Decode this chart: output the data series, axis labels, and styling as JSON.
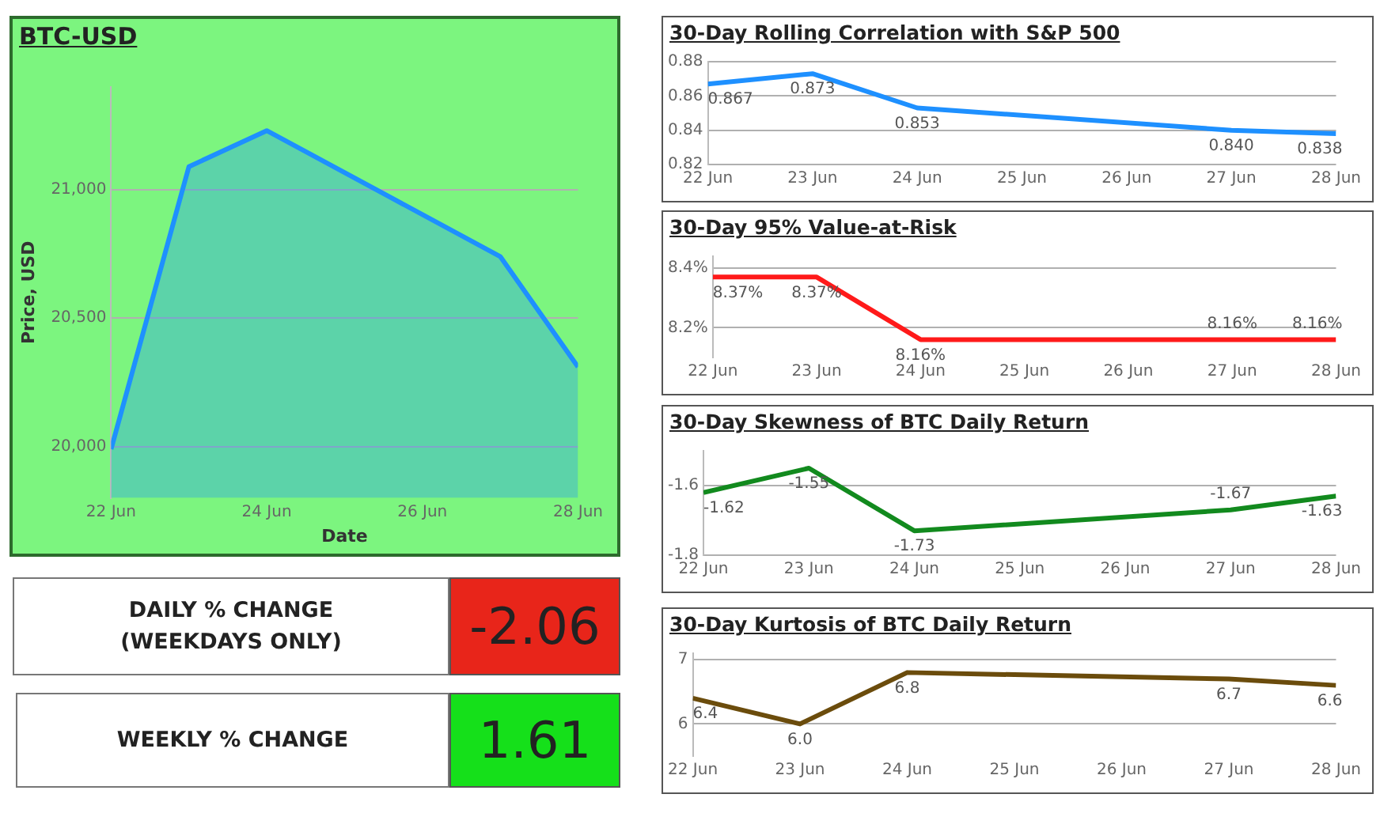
{
  "chart_data": [
    {
      "type": "area",
      "title": "BTC-USD",
      "xlabel": "Date",
      "ylabel": "Price, USD",
      "x": [
        "--06-22",
        "--06-23",
        "--06-24",
        "--06-27",
        "--06-28"
      ],
      "values": [
        19990,
        21090,
        21230,
        20740,
        20310
      ],
      "color": "#1e90ff",
      "xlim": [
        "--06-22",
        "--06-28"
      ],
      "xticks": [
        {
          "value": "--06-22",
          "label": "22 Jun"
        },
        {
          "value": "--06-24",
          "label": "24 Jun"
        },
        {
          "value": "--06-26",
          "label": "26 Jun"
        },
        {
          "value": "--06-28",
          "label": "28 Jun"
        }
      ],
      "ylim": [
        19800,
        21400
      ],
      "yticks": [
        {
          "value": 20000,
          "label": "20,000"
        },
        {
          "value": 20500,
          "label": "20,500"
        },
        {
          "value": 21000,
          "label": "21,000"
        }
      ],
      "grid": "y"
    },
    {
      "type": "line",
      "title": "30-Day Rolling Correlation with S&P 500",
      "x": [
        "--06-22",
        "--06-23",
        "--06-24",
        "--06-27",
        "--06-28"
      ],
      "values": [
        0.867,
        0.873,
        0.853,
        0.84,
        0.838
      ],
      "value_labels": [
        "0.867",
        "0.873",
        "0.853",
        "0.840",
        "0.838"
      ],
      "color": "#1e90ff",
      "xlim": [
        "--06-22",
        "--06-28"
      ],
      "xticks": [
        {
          "value": "--06-22",
          "label": "22 Jun"
        },
        {
          "value": "--06-23",
          "label": "23 Jun"
        },
        {
          "value": "--06-24",
          "label": "24 Jun"
        },
        {
          "value": "--06-25",
          "label": "25 Jun"
        },
        {
          "value": "--06-26",
          "label": "26 Jun"
        },
        {
          "value": "--06-27",
          "label": "27 Jun"
        },
        {
          "value": "--06-28",
          "label": "28 Jun"
        }
      ],
      "ylim": [
        0.82,
        0.88
      ],
      "yticks": [
        0.82,
        0.84,
        0.86,
        0.88
      ],
      "grid": "y"
    },
    {
      "type": "line",
      "title": "30-Day 95% Value-at-Risk",
      "x": [
        "--06-22",
        "--06-23",
        "--06-24",
        "--06-27",
        "--06-28"
      ],
      "values": [
        8.37,
        8.37,
        8.16,
        8.16,
        8.16
      ],
      "value_labels": [
        "8.37%",
        "8.37%",
        "8.16%",
        "8.16%",
        "8.16%"
      ],
      "color": "#ff1a1a",
      "xlim": [
        "--06-22",
        "--06-28"
      ],
      "xticks": [
        {
          "value": "--06-22",
          "label": "22 Jun"
        },
        {
          "value": "--06-23",
          "label": "23 Jun"
        },
        {
          "value": "--06-24",
          "label": "24 Jun"
        },
        {
          "value": "--06-25",
          "label": "25 Jun"
        },
        {
          "value": "--06-26",
          "label": "26 Jun"
        },
        {
          "value": "--06-27",
          "label": "27 Jun"
        },
        {
          "value": "--06-28",
          "label": "28 Jun"
        }
      ],
      "ylim": [
        8.1,
        8.44
      ],
      "yticks": [
        {
          "value": 8.2,
          "label": "8.2%"
        },
        {
          "value": 8.4,
          "label": "8.4%"
        }
      ],
      "grid": "y"
    },
    {
      "type": "line",
      "title": "30-Day Skewness of BTC Daily Return",
      "x": [
        "--06-22",
        "--06-23",
        "--06-24",
        "--06-27",
        "--06-28"
      ],
      "values": [
        -1.62,
        -1.55,
        -1.73,
        -1.67,
        -1.63
      ],
      "value_labels": [
        "-1.62",
        "-1.55",
        "-1.73",
        "-1.67",
        "-1.63"
      ],
      "color": "#128a1e",
      "xlim": [
        "--06-22",
        "--06-28"
      ],
      "xticks": [
        {
          "value": "--06-22",
          "label": "22 Jun"
        },
        {
          "value": "--06-23",
          "label": "23 Jun"
        },
        {
          "value": "--06-24",
          "label": "24 Jun"
        },
        {
          "value": "--06-25",
          "label": "25 Jun"
        },
        {
          "value": "--06-26",
          "label": "26 Jun"
        },
        {
          "value": "--06-27",
          "label": "27 Jun"
        },
        {
          "value": "--06-28",
          "label": "28 Jun"
        }
      ],
      "ylim": [
        -1.8,
        -1.5
      ],
      "yticks": [
        -1.8,
        -1.6
      ],
      "grid": "y"
    },
    {
      "type": "line",
      "title": "30-Day Kurtosis of BTC Daily Return",
      "x": [
        "--06-22",
        "--06-23",
        "--06-24",
        "--06-27",
        "--06-28"
      ],
      "values": [
        6.4,
        6.0,
        6.8,
        6.7,
        6.6
      ],
      "value_labels": [
        "6.4",
        "6.0",
        "6.8",
        "6.7",
        "6.6"
      ],
      "color": "#6b4c0c",
      "xlim": [
        "--06-22",
        "--06-28"
      ],
      "xticks": [
        {
          "value": "--06-22",
          "label": "22 Jun"
        },
        {
          "value": "--06-23",
          "label": "23 Jun"
        },
        {
          "value": "--06-24",
          "label": "24 Jun"
        },
        {
          "value": "--06-25",
          "label": "25 Jun"
        },
        {
          "value": "--06-26",
          "label": "26 Jun"
        },
        {
          "value": "--06-27",
          "label": "27 Jun"
        },
        {
          "value": "--06-28",
          "label": "28 Jun"
        }
      ],
      "ylim": [
        5.5,
        7.1
      ],
      "yticks": [
        6,
        7
      ],
      "grid": "y"
    },
    {
      "type": "other",
      "title": "DAILY % CHANGE (WEEKDAYS ONLY)",
      "values": [
        -2.06
      ],
      "colors": [
        "#e8251a"
      ],
      "data_labels": true
    },
    {
      "type": "other",
      "title": "WEEKLY % CHANGE",
      "values": [
        1.61
      ],
      "colors": [
        "#15e01a"
      ],
      "data_labels": true
    }
  ]
}
